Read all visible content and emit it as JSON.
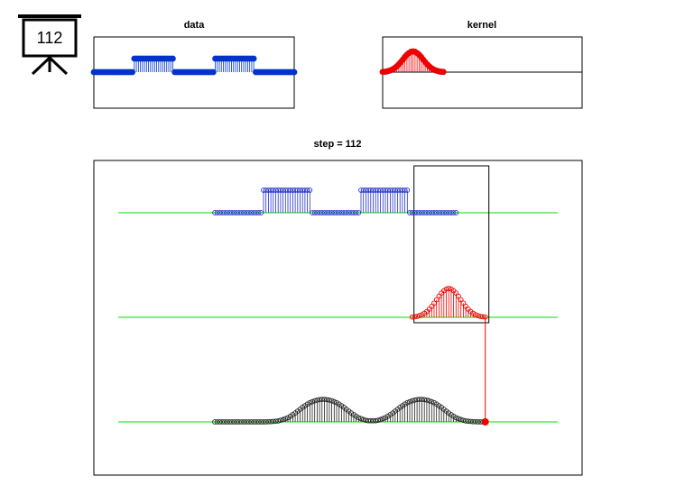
{
  "icon_label": "112",
  "panels": {
    "data": {
      "title": "data",
      "values": [
        0,
        0,
        0,
        0,
        0,
        0,
        0,
        0,
        0,
        0,
        0,
        0,
        0,
        0,
        0,
        0,
        0,
        0,
        0,
        0,
        1,
        1,
        1,
        1,
        1,
        1,
        1,
        1,
        1,
        1,
        1,
        1,
        1,
        1,
        1,
        1,
        1,
        1,
        1,
        1,
        0,
        0,
        0,
        0,
        0,
        0,
        0,
        0,
        0,
        0,
        0,
        0,
        0,
        0,
        0,
        0,
        0,
        0,
        0,
        0,
        1,
        1,
        1,
        1,
        1,
        1,
        1,
        1,
        1,
        1,
        1,
        1,
        1,
        1,
        1,
        1,
        1,
        1,
        1,
        1,
        0,
        0,
        0,
        0,
        0,
        0,
        0,
        0,
        0,
        0,
        0,
        0,
        0,
        0,
        0,
        0,
        0,
        0,
        0,
        0
      ]
    },
    "kernel": {
      "title": "kernel",
      "values": [
        0.01,
        0.02,
        0.03,
        0.06,
        0.09,
        0.14,
        0.2,
        0.28,
        0.38,
        0.49,
        0.61,
        0.73,
        0.84,
        0.92,
        0.98,
        1,
        0.98,
        0.92,
        0.84,
        0.73,
        0.61,
        0.49,
        0.38,
        0.28,
        0.2,
        0.14,
        0.09,
        0.06,
        0.03,
        0.02,
        0.01
      ]
    },
    "step": {
      "title": "step = 112",
      "output": [
        0,
        0,
        0,
        0,
        0,
        0,
        0,
        0,
        0,
        0,
        0,
        0,
        0,
        0,
        0,
        0,
        0,
        0,
        0,
        0,
        0,
        0,
        0.01,
        0.01,
        0.02,
        0.03,
        0.04,
        0.07,
        0.1,
        0.14,
        0.18,
        0.24,
        0.31,
        0.38,
        0.46,
        0.54,
        0.62,
        0.69,
        0.76,
        0.82,
        0.86,
        0.9,
        0.93,
        0.95,
        0.96,
        0.96,
        0.95,
        0.93,
        0.9,
        0.86,
        0.82,
        0.76,
        0.69,
        0.62,
        0.54,
        0.46,
        0.38,
        0.31,
        0.24,
        0.18,
        0.14,
        0.1,
        0.07,
        0.05,
        0.05,
        0.05,
        0.05,
        0.07,
        0.1,
        0.14,
        0.18,
        0.24,
        0.31,
        0.38,
        0.46,
        0.54,
        0.62,
        0.69,
        0.76,
        0.82,
        0.86,
        0.9,
        0.93,
        0.95,
        0.96,
        0.96,
        0.95,
        0.93,
        0.9,
        0.86,
        0.82,
        0.76,
        0.69,
        0.62,
        0.54,
        0.46,
        0.38,
        0.31,
        0.24,
        0.18,
        0.14,
        0.1,
        0.07,
        0.04,
        0.03,
        0.02,
        0.01,
        0.01,
        0,
        0,
        0,
        0
      ]
    }
  }
}
